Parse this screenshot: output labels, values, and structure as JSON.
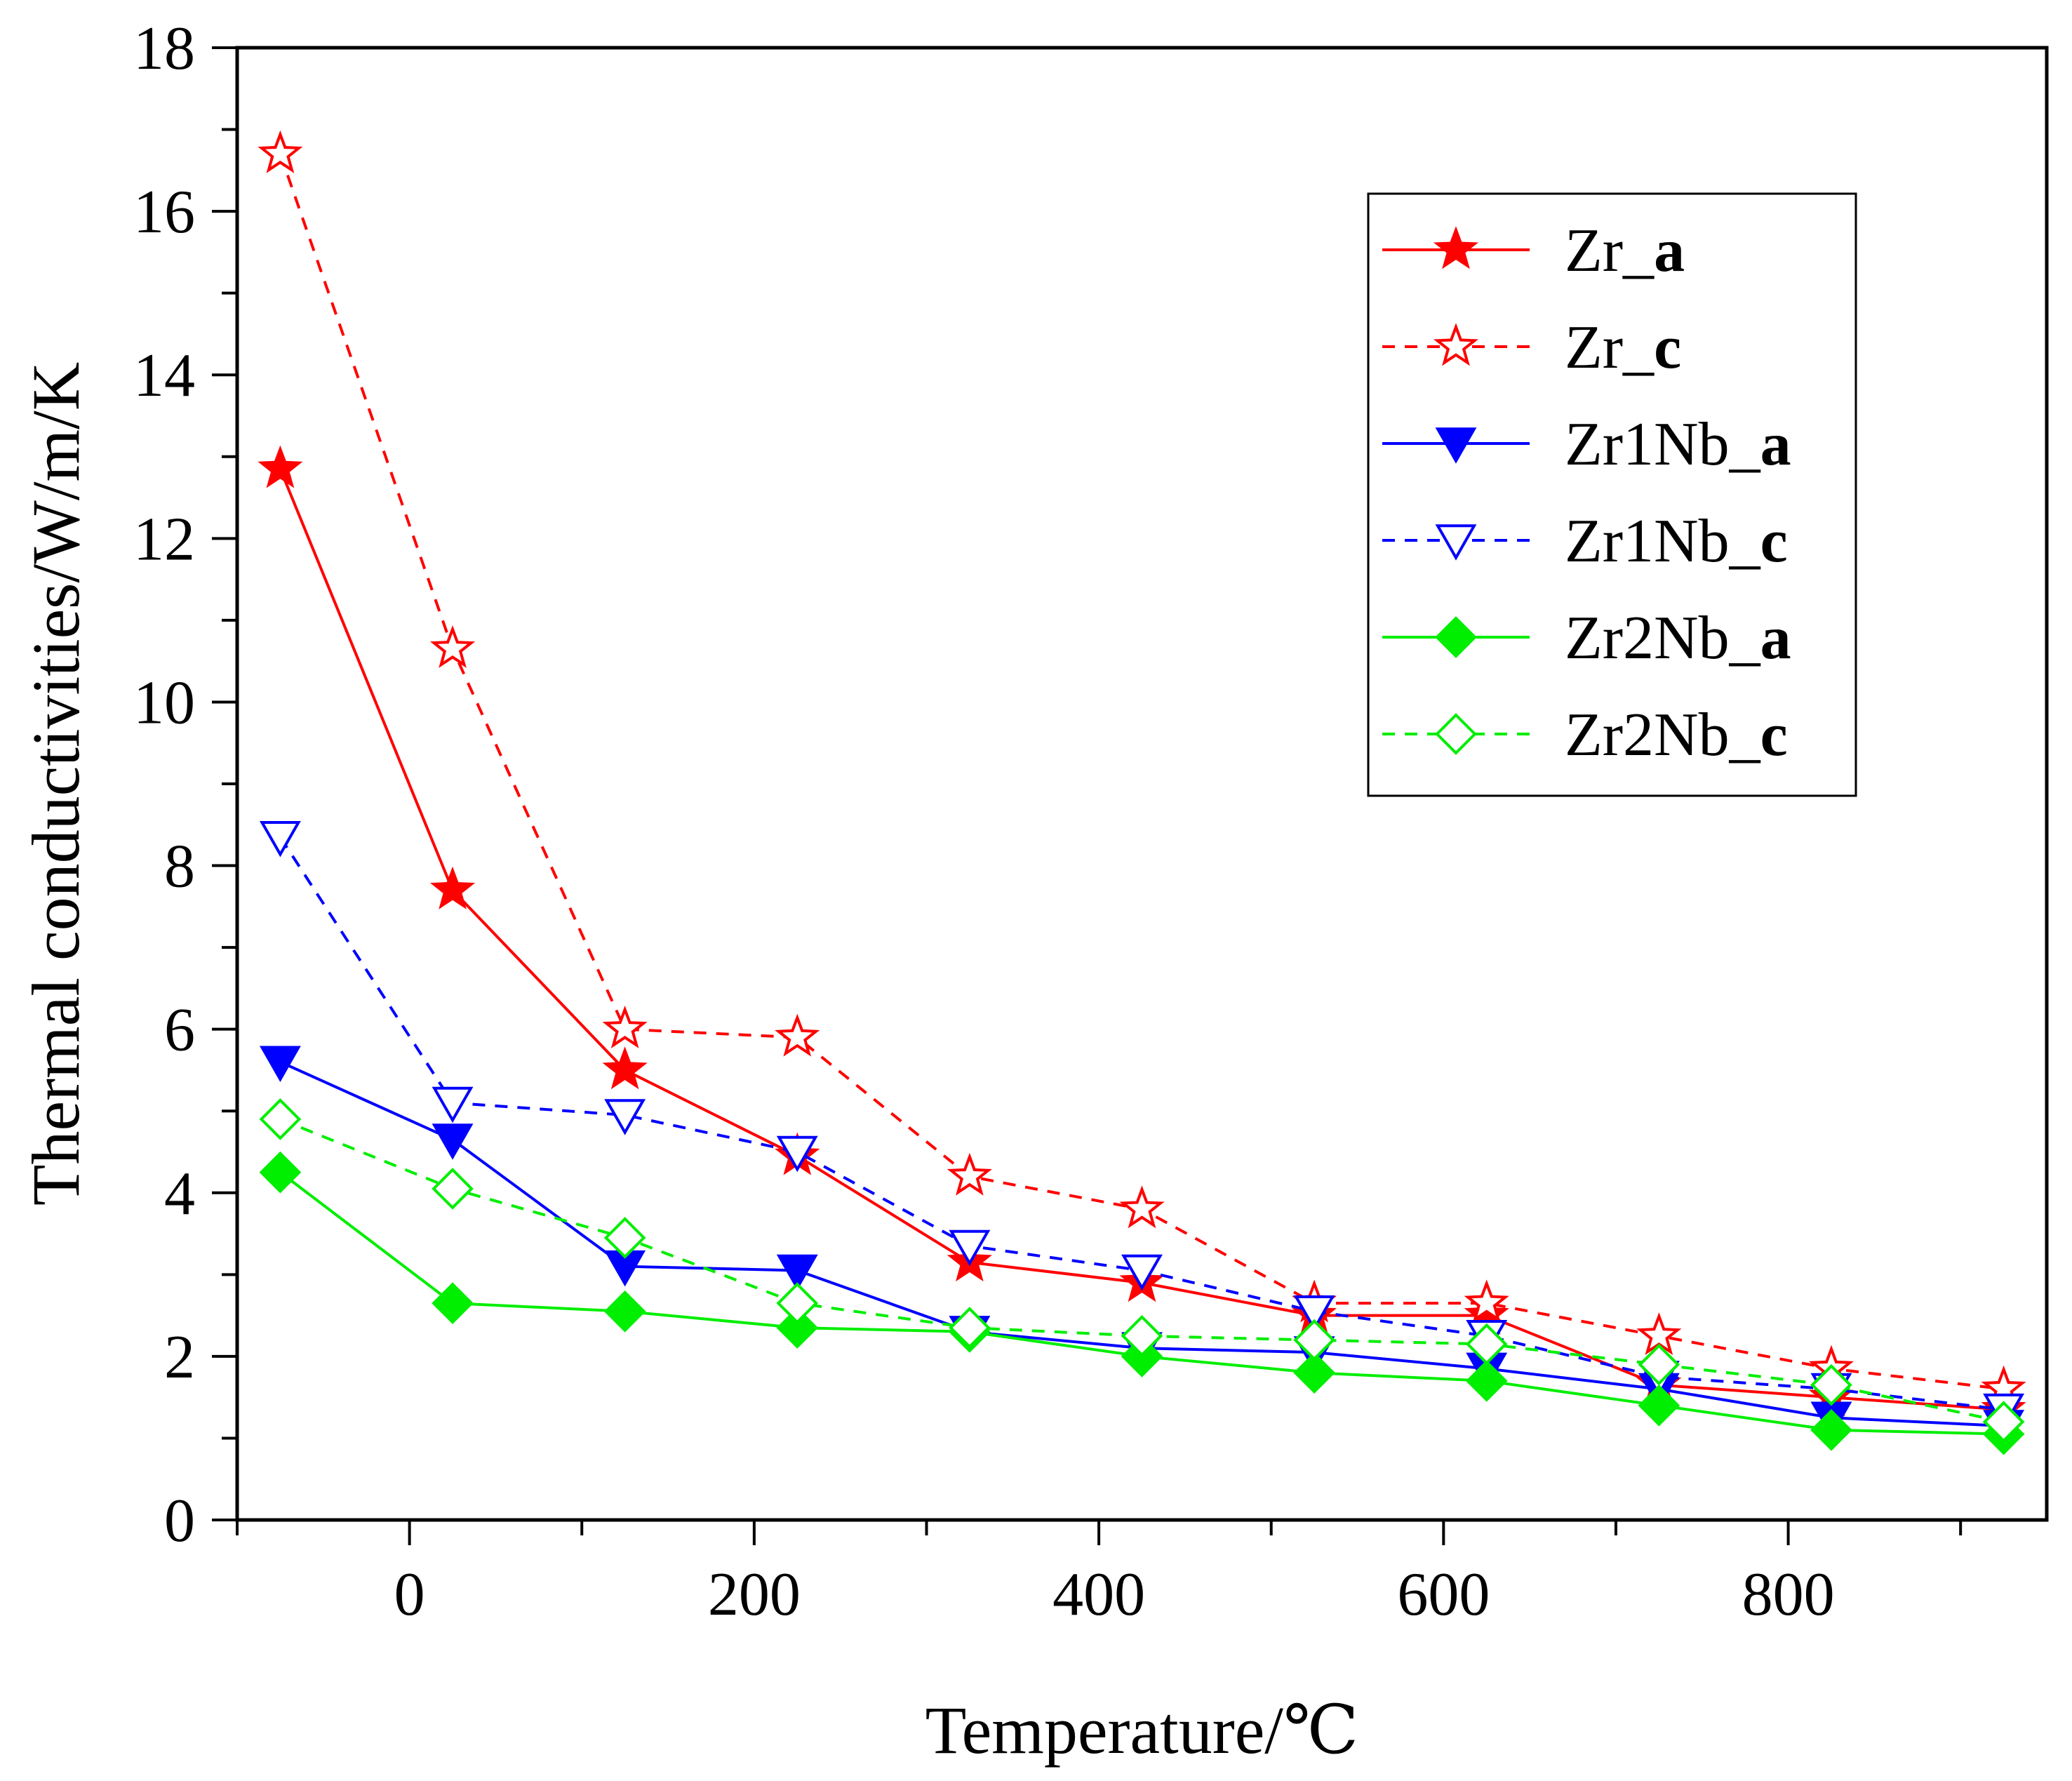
{
  "chart_data": {
    "type": "line",
    "title": "",
    "xlabel": "Temperature/℃",
    "ylabel": "Thermal conductivities/W/m/K",
    "xlim": [
      -100,
      950
    ],
    "ylim": [
      0,
      18
    ],
    "xticks": [
      0,
      200,
      400,
      600,
      800
    ],
    "yticks": [
      0,
      2,
      4,
      6,
      8,
      10,
      12,
      14,
      16,
      18
    ],
    "x": [
      -75,
      25,
      125,
      225,
      325,
      425,
      525,
      625,
      725,
      825,
      925
    ],
    "legend_position": "top-right",
    "series": [
      {
        "name": "Zr_",
        "suffix": "a",
        "color": "#ff0000",
        "style": "solid",
        "marker": "star",
        "filled": true,
        "values": [
          12.85,
          7.7,
          5.5,
          4.45,
          3.15,
          2.9,
          2.5,
          2.5,
          1.65,
          1.5,
          1.35
        ]
      },
      {
        "name": "Zr_",
        "suffix": "c",
        "color": "#ff0000",
        "style": "dashed",
        "marker": "star",
        "filled": false,
        "values": [
          16.7,
          10.65,
          6.0,
          5.9,
          4.2,
          3.8,
          2.65,
          2.65,
          2.25,
          1.85,
          1.6
        ]
      },
      {
        "name": "Zr1Nb_",
        "suffix": "a",
        "color": "#0000ff",
        "style": "solid",
        "marker": "triangle-down",
        "filled": true,
        "values": [
          5.6,
          4.65,
          3.1,
          3.05,
          2.3,
          2.1,
          2.05,
          1.85,
          1.6,
          1.25,
          1.15
        ]
      },
      {
        "name": "Zr1Nb_",
        "suffix": "c",
        "color": "#0000ff",
        "style": "dashed",
        "marker": "triangle-down",
        "filled": false,
        "values": [
          8.35,
          5.1,
          4.95,
          4.5,
          3.35,
          3.05,
          2.55,
          2.25,
          1.75,
          1.6,
          1.35
        ]
      },
      {
        "name": "Zr2Nb_",
        "suffix": "a",
        "color": "#00ee00",
        "style": "solid",
        "marker": "diamond",
        "filled": true,
        "values": [
          4.25,
          2.65,
          2.55,
          2.35,
          2.3,
          2.0,
          1.8,
          1.7,
          1.4,
          1.1,
          1.05
        ]
      },
      {
        "name": "Zr2Nb_",
        "suffix": "c",
        "color": "#00ee00",
        "style": "dashed",
        "marker": "diamond",
        "filled": false,
        "values": [
          4.9,
          4.05,
          3.45,
          2.65,
          2.35,
          2.25,
          2.2,
          2.15,
          1.9,
          1.65,
          1.2
        ]
      }
    ]
  }
}
